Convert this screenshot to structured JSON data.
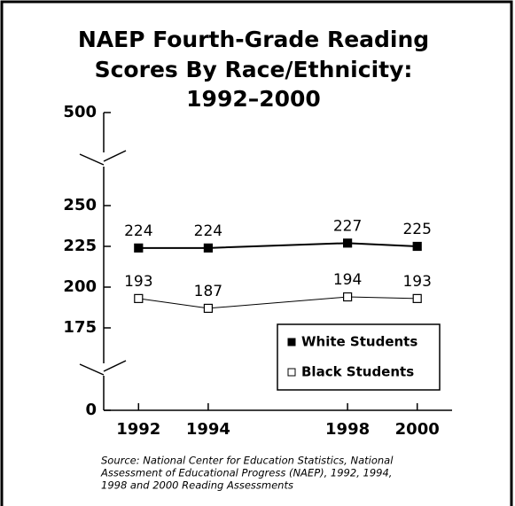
{
  "chart_data": {
    "type": "line",
    "title": [
      "NAEP Fourth-Grade Reading",
      "Scores By Race/Ethnicity:",
      "1992–2000"
    ],
    "x": [
      1992,
      1994,
      1998,
      2000
    ],
    "series": [
      {
        "name": "White Students",
        "color": "#000000",
        "marker": "filled-square",
        "values": [
          224,
          224,
          227,
          225
        ]
      },
      {
        "name": "Black Students",
        "color": "#000000",
        "marker": "open-square",
        "values": [
          193,
          187,
          194,
          193
        ]
      }
    ],
    "xlim": [
      1991,
      2001
    ],
    "xticks": [
      1992,
      1994,
      1998,
      2000
    ],
    "ylim": [
      0,
      500
    ],
    "yticks": [
      0,
      175,
      200,
      225,
      250,
      500
    ],
    "axis_breaks": [
      [
        0,
        175
      ],
      [
        250,
        500
      ]
    ],
    "legend": "lower right",
    "source": [
      "Source: National Center for Education Statistics, National",
      "Assessment of Educational Progress (NAEP), 1992, 1994,",
      "1998 and 2000 Reading Assessments"
    ]
  }
}
